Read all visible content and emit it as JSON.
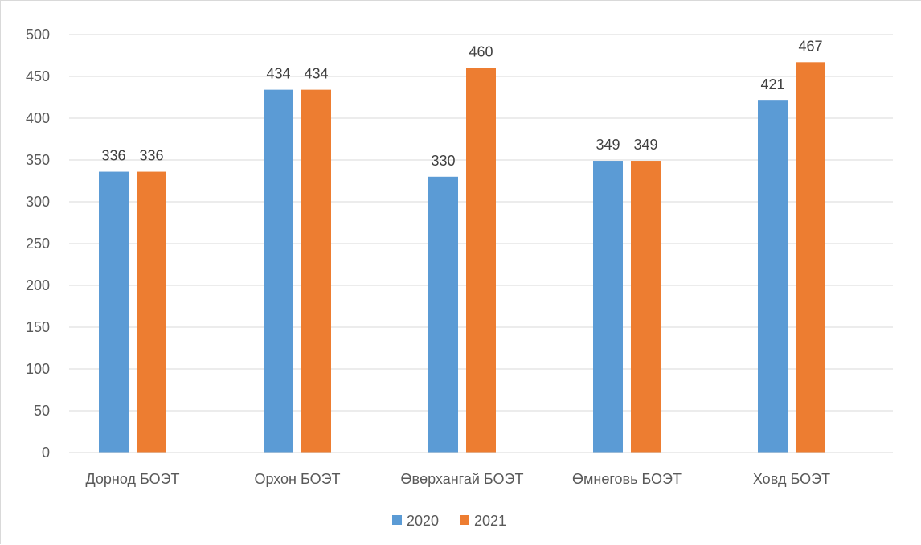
{
  "chart_data": {
    "type": "bar",
    "categories": [
      "Дорнод БОЭТ",
      "Орхон БОЭТ",
      "Өвөрхангай БОЭТ",
      "Өмнөговь БОЭТ",
      "Ховд БОЭТ"
    ],
    "series": [
      {
        "name": "2020",
        "color": "#5b9bd5",
        "values": [
          336,
          434,
          330,
          349,
          421
        ]
      },
      {
        "name": "2021",
        "color": "#ed7d31",
        "values": [
          336,
          434,
          460,
          349,
          467
        ]
      }
    ],
    "ylim": [
      0,
      500
    ],
    "yticks": [
      0,
      50,
      100,
      150,
      200,
      250,
      300,
      350,
      400,
      450,
      500
    ],
    "grid": true,
    "legend": "bottom-center",
    "data_labels": true
  }
}
